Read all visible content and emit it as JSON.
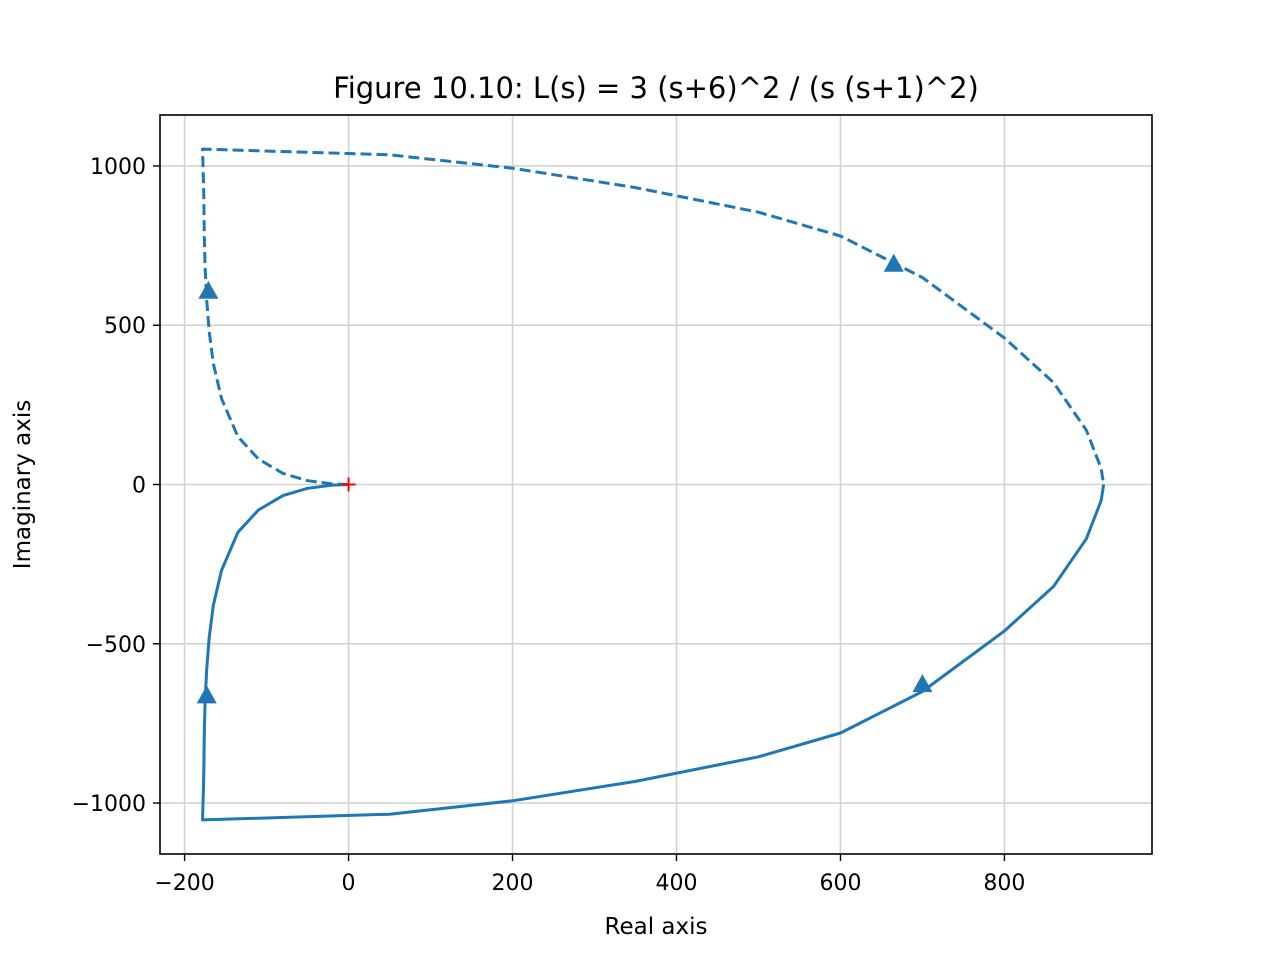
{
  "chart_data": {
    "type": "line",
    "title": "Figure 10.10: L(s) = 3 (s+6)^2 / (s (s+1)^2)",
    "xlabel": "Real axis",
    "ylabel": "Imaginary axis",
    "xlim": [
      -230,
      980
    ],
    "ylim": [
      -1160,
      1160
    ],
    "xticks": [
      -200,
      0,
      200,
      400,
      600,
      800
    ],
    "xtick_labels": [
      "−200",
      "0",
      "200",
      "400",
      "600",
      "800"
    ],
    "yticks": [
      -1000,
      -500,
      0,
      500,
      1000
    ],
    "ytick_labels": [
      "−1000",
      "−500",
      "0",
      "500",
      "1000"
    ],
    "grid": true,
    "series": [
      {
        "style": "solid",
        "color": "#1f77b4",
        "x": [
          0,
          -20,
          -50,
          -80,
          -110,
          -135,
          -155,
          -165,
          -170,
          -173,
          -175,
          -176,
          -176.5,
          -177,
          -177.5,
          -178,
          50,
          200,
          350,
          500,
          600,
          700,
          800,
          860,
          900,
          918,
          921
        ],
        "y": [
          0,
          -2,
          -12,
          -35,
          -80,
          -150,
          -270,
          -380,
          -480,
          -580,
          -680,
          -780,
          -880,
          -950,
          -1000,
          -1053,
          -1035,
          -993,
          -932,
          -855,
          -780,
          -650,
          -460,
          -320,
          -170,
          -50,
          0
        ]
      },
      {
        "style": "dashed",
        "color": "#1f77b4",
        "x": [
          0,
          -20,
          -50,
          -80,
          -110,
          -135,
          -155,
          -165,
          -170,
          -173,
          -175,
          -176,
          -176.5,
          -177,
          -177.5,
          -178,
          50,
          200,
          350,
          500,
          600,
          700,
          800,
          860,
          900,
          918,
          921
        ],
        "y": [
          0,
          2,
          12,
          35,
          80,
          150,
          270,
          380,
          480,
          580,
          680,
          780,
          880,
          950,
          1000,
          1053,
          1035,
          993,
          932,
          855,
          780,
          650,
          460,
          320,
          170,
          50,
          0
        ]
      }
    ],
    "arrows": [
      {
        "x": 665,
        "y": 690,
        "color": "#1f77b4"
      },
      {
        "x": -171,
        "y": 605,
        "color": "#1f77b4"
      },
      {
        "x": -173,
        "y": -665,
        "color": "#1f77b4"
      },
      {
        "x": 700,
        "y": -630,
        "color": "#1f77b4"
      }
    ],
    "marker": {
      "x": 0,
      "y": 0,
      "symbol": "+",
      "color": "#ff0000"
    },
    "colors": {
      "line": "#1f77b4",
      "grid": "#d3d3d3",
      "marker": "#ff0000"
    }
  }
}
